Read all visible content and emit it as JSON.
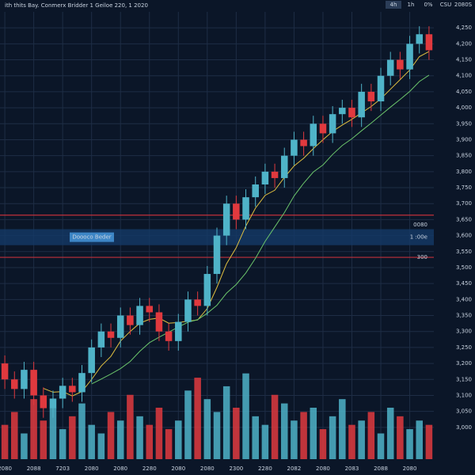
{
  "chart_data": {
    "type": "candlestick",
    "title": "ith thits Bay. Conmerx Bridder 1 Geiloe 220, 1 2020",
    "toolbar": [
      "4h",
      "1h",
      "0%",
      "CSU",
      "2080S"
    ],
    "categories": [
      "2080",
      null,
      null,
      "2088",
      null,
      null,
      "7203",
      null,
      null,
      "2080",
      null,
      null,
      "2080",
      null,
      null,
      "2280",
      null,
      null,
      "2080",
      null,
      null,
      "2080",
      null,
      null,
      "2300",
      null,
      null,
      "2280",
      null,
      null,
      "2082",
      null,
      null,
      "2080",
      null,
      null,
      "2083",
      null,
      null,
      "2088",
      null,
      null,
      "2080",
      null,
      null
    ],
    "open": [
      3200,
      3150,
      3120,
      3180,
      3100,
      3060,
      3090,
      3130,
      3110,
      3170,
      3250,
      3300,
      3280,
      3350,
      3320,
      3380,
      3360,
      3300,
      3270,
      3330,
      3400,
      3380,
      3480,
      3600,
      3700,
      3650,
      3720,
      3760,
      3800,
      3780,
      3850,
      3900,
      3880,
      3950,
      3920,
      3980,
      4000,
      3970,
      4050,
      4020,
      4100,
      4150,
      4120,
      4200,
      4230
    ],
    "high": [
      3225,
      3175,
      3205,
      3205,
      3125,
      3115,
      3155,
      3155,
      3195,
      3275,
      3325,
      3325,
      3375,
      3375,
      3405,
      3405,
      3385,
      3325,
      3355,
      3425,
      3425,
      3505,
      3625,
      3725,
      3725,
      3745,
      3785,
      3825,
      3825,
      3875,
      3925,
      3925,
      3975,
      3975,
      4005,
      4025,
      4025,
      4075,
      4075,
      4125,
      4175,
      4175,
      4225,
      4255,
      4255
    ],
    "low": [
      3120,
      3090,
      3090,
      3070,
      3030,
      3030,
      3060,
      3080,
      3080,
      3140,
      3220,
      3250,
      3250,
      3290,
      3290,
      3330,
      3270,
      3240,
      3240,
      3300,
      3350,
      3350,
      3450,
      3570,
      3620,
      3620,
      3690,
      3730,
      3750,
      3750,
      3820,
      3850,
      3850,
      3890,
      3890,
      3950,
      3940,
      3940,
      3990,
      3990,
      4070,
      4090,
      4090,
      4170,
      4150
    ],
    "close": [
      3150,
      3120,
      3180,
      3100,
      3060,
      3090,
      3130,
      3110,
      3170,
      3250,
      3300,
      3280,
      3350,
      3320,
      3380,
      3360,
      3300,
      3270,
      3330,
      3400,
      3380,
      3480,
      3600,
      3700,
      3650,
      3720,
      3760,
      3800,
      3780,
      3850,
      3900,
      3880,
      3950,
      3920,
      3980,
      4000,
      3970,
      4050,
      4020,
      4100,
      4150,
      4120,
      4200,
      4230,
      4180
    ],
    "volume": [
      40,
      55,
      30,
      70,
      45,
      60,
      35,
      50,
      65,
      40,
      30,
      55,
      45,
      75,
      50,
      40,
      60,
      35,
      45,
      80,
      95,
      70,
      55,
      85,
      60,
      100,
      50,
      40,
      75,
      65,
      45,
      55,
      60,
      35,
      50,
      70,
      40,
      45,
      55,
      30,
      60,
      50,
      35,
      45,
      40
    ],
    "ylim": [
      2950,
      4300
    ],
    "yticks": [
      {
        "value": 3000,
        "label": "3,000"
      },
      {
        "value": 3050,
        "label": "3,050"
      },
      {
        "value": 3100,
        "label": "3,100"
      },
      {
        "value": 3150,
        "label": "3,150"
      },
      {
        "value": 3200,
        "label": "3,200"
      },
      {
        "value": 3250,
        "label": "3,250"
      },
      {
        "value": 3300,
        "label": "3,300"
      },
      {
        "value": 3350,
        "label": "3,350"
      },
      {
        "value": 3400,
        "label": "3,400"
      },
      {
        "value": 3450,
        "label": "3,450"
      },
      {
        "value": 3500,
        "label": "3,500"
      },
      {
        "value": 3550,
        "label": "3,550"
      },
      {
        "value": 3600,
        "label": "3,600"
      },
      {
        "value": 3650,
        "label": "3,650"
      },
      {
        "value": 3700,
        "label": "3,700"
      },
      {
        "value": 3750,
        "label": "3,750"
      },
      {
        "value": 3800,
        "label": "3,800"
      },
      {
        "value": 3850,
        "label": "3,850"
      },
      {
        "value": 3900,
        "label": "3,900"
      },
      {
        "value": 3950,
        "label": "3,950"
      },
      {
        "value": 4000,
        "label": "4,000"
      },
      {
        "value": 4050,
        "label": "4,050"
      },
      {
        "value": 4100,
        "label": "4,100"
      },
      {
        "value": 4150,
        "label": "4,150"
      },
      {
        "value": 4200,
        "label": "4,200"
      },
      {
        "value": 4250,
        "label": "4,250"
      }
    ],
    "vlim": [
      0,
      120
    ],
    "up_color": "#4fb3c8",
    "down_color": "#e0393e",
    "levels": [
      3664,
      3532
    ],
    "level_color": "#c0303a",
    "band": [
      3570,
      3620
    ],
    "band_label": "Doooco Beder",
    "side_labels": [
      "0080",
      "1 :00e",
      "300"
    ],
    "grid": true
  }
}
